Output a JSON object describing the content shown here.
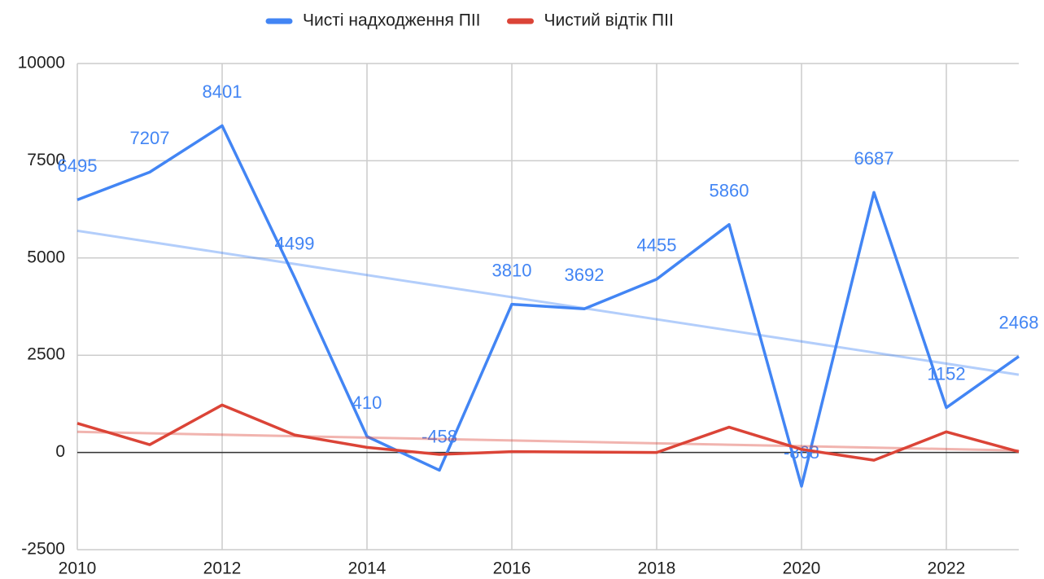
{
  "chart_data": {
    "type": "line",
    "x": [
      2010,
      2011,
      2012,
      2013,
      2014,
      2015,
      2016,
      2017,
      2018,
      2019,
      2020,
      2021,
      2022,
      2023
    ],
    "series": [
      {
        "name": "Чисті надходження ПІІ",
        "color": "#4285f4",
        "values": [
          6495,
          7207,
          8401,
          4499,
          410,
          -458,
          3810,
          3692,
          4455,
          5860,
          -868,
          6687,
          1152,
          2468
        ],
        "trendline": [
          5700,
          2000
        ],
        "data_labels": true
      },
      {
        "name": "Чистий відтік ПІІ",
        "color": "#db4437",
        "values": [
          750,
          200,
          1220,
          450,
          130,
          -50,
          20,
          10,
          0,
          650,
          80,
          -200,
          530,
          20
        ],
        "trendline": [
          530,
          50
        ],
        "data_labels": false
      }
    ],
    "xlim": [
      2010,
      2023
    ],
    "xticks": [
      2010,
      2012,
      2014,
      2016,
      2018,
      2020,
      2022
    ],
    "ylim": [
      -2500,
      10000
    ],
    "yticks": [
      -2500,
      0,
      2500,
      5000,
      7500,
      10000
    ],
    "grid": true,
    "legend": "top"
  }
}
